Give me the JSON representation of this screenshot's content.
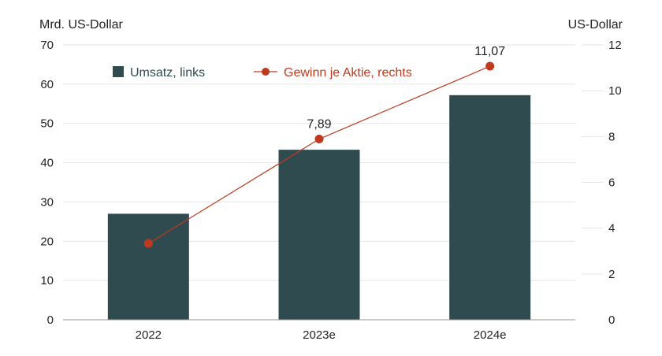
{
  "chart_data": {
    "type": "bar",
    "categories": [
      "2022",
      "2023e",
      "2024e"
    ],
    "series": [
      {
        "name": "Umsatz, links",
        "type": "bar",
        "axis": "left",
        "values": [
          27.0,
          43.3,
          57.2
        ],
        "color": "#2f4b50"
      },
      {
        "name": "Gewinn je Aktie, rechts",
        "type": "line",
        "axis": "right",
        "values": [
          3.33,
          7.89,
          11.07
        ],
        "labels": [
          "",
          "7,89",
          "11,07"
        ],
        "color": "#c0391f"
      }
    ],
    "ylabel_left": "Mrd. US-Dollar",
    "ylabel_right": "US-Dollar",
    "ylim_left": [
      0,
      70
    ],
    "yticks_left": [
      "0",
      "10",
      "20",
      "30",
      "40",
      "50",
      "60",
      "70"
    ],
    "ylim_right": [
      0,
      12
    ],
    "yticks_right": [
      "0",
      "2",
      "4",
      "6",
      "8",
      "10",
      "12"
    ],
    "grid": true,
    "legend_position": "top-left"
  }
}
